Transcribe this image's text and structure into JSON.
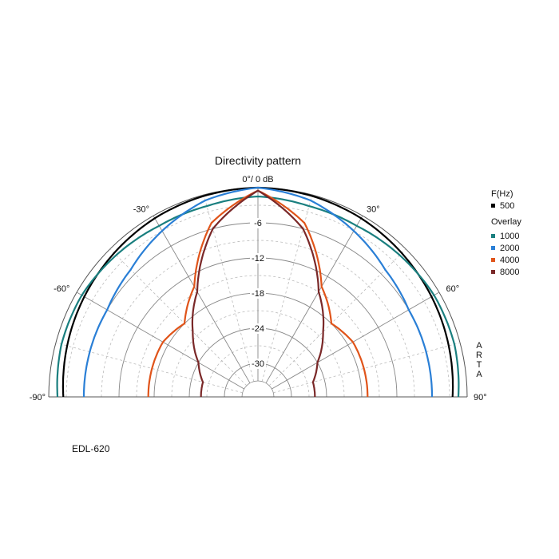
{
  "chart_data": {
    "type": "polar",
    "title": "Directivity pattern",
    "top_label": "0°/ 0 dB",
    "rlim": [
      -33,
      0
    ],
    "radial_ticks": [
      -6,
      -12,
      -18,
      -24,
      -30
    ],
    "angle_range": [
      -90,
      90
    ],
    "angle_labels": [
      {
        "angle": -90,
        "text": "-90°"
      },
      {
        "angle": -60,
        "text": "-60°"
      },
      {
        "angle": -30,
        "text": "-30°"
      },
      {
        "angle": 30,
        "text": "30°"
      },
      {
        "angle": 60,
        "text": "60°"
      },
      {
        "angle": 90,
        "text": "90°"
      }
    ],
    "grid": true,
    "legend_header": "F(Hz)",
    "legend_overlay_label": "Overlay",
    "side_label": [
      "A",
      "R",
      "T",
      "A"
    ],
    "angles": [
      -90,
      -75,
      -60,
      -45,
      -30,
      -15,
      0,
      15,
      30,
      45,
      60,
      75,
      90
    ],
    "series": [
      {
        "name": "500",
        "color": "#000000",
        "values": [
          -2.5,
          -2,
          -1.5,
          -1,
          -0.5,
          -0.2,
          0,
          -0.2,
          -0.5,
          -1,
          -1.5,
          -2,
          -2.5
        ]
      },
      {
        "name": "1000",
        "color": "#1a7f7f",
        "values": [
          -1.5,
          -1,
          -1,
          -1.5,
          -2,
          -2,
          -1.5,
          -2,
          -2,
          -1.5,
          -1,
          -1,
          -1.5
        ]
      },
      {
        "name": "2000",
        "color": "#2a7fd6",
        "values": [
          -6,
          -6,
          -6,
          -5,
          -3,
          -1,
          0,
          -1,
          -3,
          -5,
          -6,
          -6,
          -6
        ]
      },
      {
        "name": "4000",
        "color": "#e0541a",
        "values": [
          -17,
          -17,
          -17,
          -18,
          -14,
          -5,
          -0.5,
          -5,
          -14,
          -18,
          -17,
          -17,
          -17
        ]
      },
      {
        "name": "8000",
        "color": "#7a2828",
        "values": [
          -26,
          -26,
          -24,
          -20,
          -15,
          -6,
          -0.5,
          -6,
          -15,
          -20,
          -24,
          -26,
          -26
        ]
      }
    ]
  },
  "footer": {
    "model": "EDL-620"
  }
}
